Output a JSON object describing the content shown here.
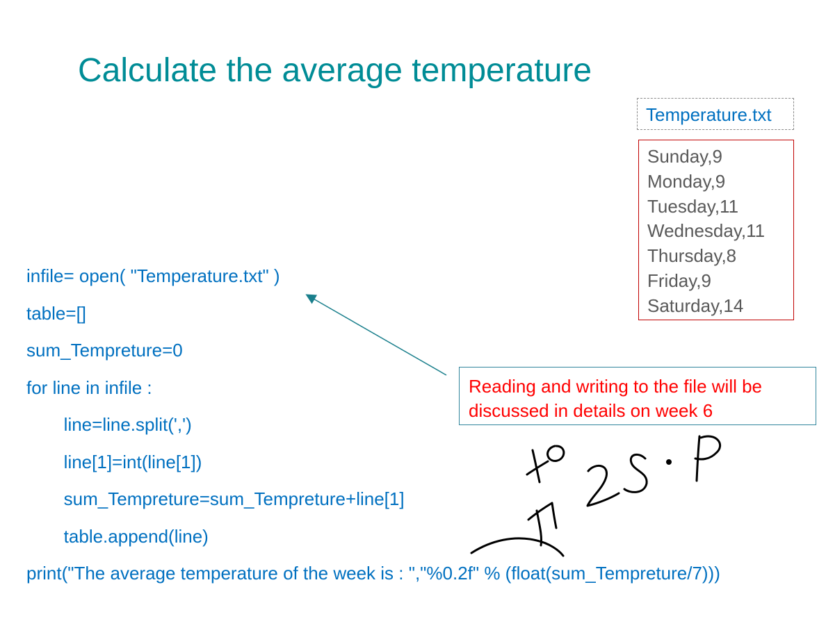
{
  "title": "Calculate the average temperature",
  "file": {
    "name": "Temperature.txt",
    "lines": [
      "Sunday,9",
      "Monday,9",
      "Tuesday,11",
      "Wednesday,11",
      "Thursday,8",
      "Friday,9",
      "Saturday,14"
    ]
  },
  "code": [
    "infile= open( \"Temperature.txt\" )",
    "table=[]",
    "sum_Tempreture=0",
    "for line in infile :",
    "   line=line.split(',')",
    "   line[1]=int(line[1])",
    "   sum_Tempreture=sum_Tempreture+line[1]",
    "   table.append(line)",
    "print(\"The average temperature of the week is : \",\"%0.2f\" % (float(sum_Tempreture/7)))"
  ],
  "note": {
    "line1": "Reading and writing to the file will be",
    "line2": "discussed in details on week 6"
  },
  "colors": {
    "title": "#008c96",
    "code": "#0070c0",
    "note_text": "#ff0000",
    "file_border": "#c00000"
  }
}
